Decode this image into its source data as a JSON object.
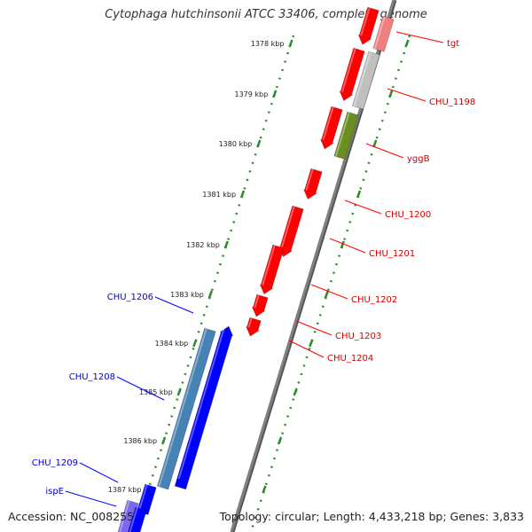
{
  "title": "Cytophaga hutchinsonii ATCC 33406, complete genome",
  "footer": {
    "accession": "Accession: NC_008255",
    "topology": "Topology: circular; Length: 4,433,218 bp; Genes: 3,833"
  },
  "colors": {
    "forward_gene": "#ff0000",
    "reverse_gene": "#0000ff",
    "rna_pink": "#f08080",
    "gray_gene": "#c0c0c0",
    "olive_gene": "#6b8e23",
    "steel_gene": "#4682b4",
    "slate_gene": "#7b68ee",
    "backbone": "#808080",
    "ticks": "#2e8b2e",
    "forward_label": "#cc0000",
    "reverse_label": "#0000cc"
  },
  "ticks": [
    "1378 kbp",
    "1379 kbp",
    "1380 kbp",
    "1381 kbp",
    "1382 kbp",
    "1383 kbp",
    "1384 kbp",
    "1385 kbp",
    "1386 kbp",
    "1387 kbp"
  ],
  "forward_labels": [
    "tgt",
    "CHU_1198",
    "yggB",
    "CHU_1200",
    "CHU_1201",
    "CHU_1202",
    "CHU_1203",
    "CHU_1204"
  ],
  "reverse_labels": [
    "CHU_1206",
    "CHU_1208",
    "CHU_1209",
    "ispE"
  ]
}
